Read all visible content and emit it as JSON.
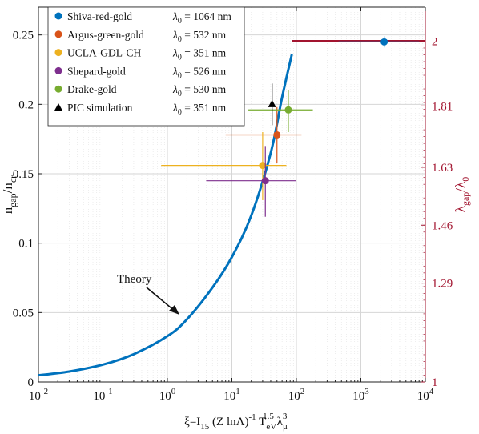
{
  "chart_data": {
    "type": "scatter",
    "xscale": "log",
    "xlim": [
      0.01,
      10000
    ],
    "ylim": [
      0,
      0.27
    ],
    "y2lim": [
      1,
      2.0
    ],
    "grid": true,
    "legend_position": "top-left",
    "xticks": [
      {
        "base": "10",
        "exp": "-2",
        "v": 0.01
      },
      {
        "base": "10",
        "exp": "-1",
        "v": 0.1
      },
      {
        "base": "10",
        "exp": "0",
        "v": 1
      },
      {
        "base": "10",
        "exp": "1",
        "v": 10
      },
      {
        "base": "10",
        "exp": "2",
        "v": 100
      },
      {
        "base": "10",
        "exp": "3",
        "v": 1000
      },
      {
        "base": "10",
        "exp": "4",
        "v": 10000
      }
    ],
    "yticks": [
      {
        "label": "0",
        "v": 0
      },
      {
        "label": "0.05",
        "v": 0.05
      },
      {
        "label": "0.1",
        "v": 0.1
      },
      {
        "label": "0.15",
        "v": 0.15
      },
      {
        "label": "0.2",
        "v": 0.2
      },
      {
        "label": "0.25",
        "v": 0.25
      }
    ],
    "y2ticks": [
      {
        "label": "1",
        "v": 1.0
      },
      {
        "label": "1.29",
        "v": 1.29
      },
      {
        "label": "1.46",
        "v": 1.46
      },
      {
        "label": "1.63",
        "v": 1.63
      },
      {
        "label": "1.81",
        "v": 1.81
      },
      {
        "label": "2",
        "v": 2.0
      }
    ],
    "xlabel": {
      "t1": "ξ=I",
      "s1": "15",
      "t2": " (Z lnΛ)",
      "p1": "-1",
      "t3": " T",
      "s2": "eV",
      "p2": "1.5",
      "t4": " λ",
      "s3": "μ",
      "p3": "3"
    },
    "ylabel": {
      "t1": "n",
      "s1": "gap",
      "t2": "/n",
      "s2": "cr"
    },
    "y2label": {
      "t1": "λ",
      "s1": "gap",
      "t2": "/λ",
      "s2": "0"
    },
    "series": [
      {
        "name": "Shiva-red-gold",
        "lambda": "1064 nm",
        "color": "#0072bd",
        "marker": "circle",
        "x": 2300,
        "y": 0.245,
        "xerr": [
          450,
          8000
        ],
        "yerr": [
          0.241,
          0.249
        ]
      },
      {
        "name": "Argus-green-gold",
        "lambda": "532 nm",
        "color": "#d95319",
        "marker": "circle",
        "x": 50,
        "y": 0.178,
        "xerr": [
          8,
          120
        ],
        "yerr": [
          0.158,
          0.198
        ]
      },
      {
        "name": "UCLA-GDL-CH",
        "lambda": "351 nm",
        "color": "#edb120",
        "marker": "circle",
        "x": 30,
        "y": 0.156,
        "xerr": [
          0.8,
          70
        ],
        "yerr": [
          0.131,
          0.18
        ]
      },
      {
        "name": "Shepard-gold",
        "lambda": "526 nm",
        "color": "#7e2f8e",
        "marker": "circle",
        "x": 33,
        "y": 0.145,
        "xerr": [
          4,
          100
        ],
        "yerr": [
          0.119,
          0.17
        ]
      },
      {
        "name": "Drake-gold",
        "lambda": "530 nm",
        "color": "#77ac30",
        "marker": "circle",
        "x": 75,
        "y": 0.196,
        "xerr": [
          18,
          180
        ],
        "yerr": [
          0.18,
          0.21
        ]
      },
      {
        "name": "PIC simulation",
        "lambda": "351 nm",
        "color": "#000000",
        "marker": "triangle",
        "x": 42,
        "y": 0.2,
        "xerr": null,
        "yerr": [
          0.185,
          0.215
        ]
      }
    ],
    "theory": {
      "label": "Theory",
      "color": "#0072bd",
      "points": [
        [
          0.01,
          0.0048
        ],
        [
          0.03,
          0.0075
        ],
        [
          0.1,
          0.0125
        ],
        [
          0.3,
          0.02
        ],
        [
          1,
          0.033
        ],
        [
          2,
          0.045
        ],
        [
          5,
          0.068
        ],
        [
          10,
          0.09
        ],
        [
          20,
          0.12
        ],
        [
          40,
          0.165
        ],
        [
          60,
          0.205
        ],
        [
          85,
          0.236
        ]
      ]
    },
    "limit_line": {
      "x": [
        85,
        10000
      ],
      "y2": 2.0,
      "color": "#a2142f"
    },
    "legend_lambda_symbol": "λ",
    "legend_lambda_sub": "0",
    "legend_eq": " = "
  }
}
